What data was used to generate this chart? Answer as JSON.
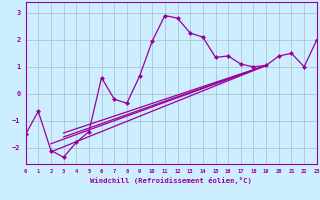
{
  "xlabel": "Windchill (Refroidissement éolien,°C)",
  "bg_color": "#cceeff",
  "line_color": "#990099",
  "grid_color": "#aabbcc",
  "x_range": [
    0,
    23
  ],
  "y_range": [
    -2.6,
    3.4
  ],
  "x_ticks": [
    0,
    1,
    2,
    3,
    4,
    5,
    6,
    7,
    8,
    9,
    10,
    11,
    12,
    13,
    14,
    15,
    16,
    17,
    18,
    19,
    20,
    21,
    22,
    23
  ],
  "y_ticks": [
    -2,
    -1,
    0,
    1,
    2,
    3
  ],
  "main_line": [
    [
      0,
      -1.5
    ],
    [
      1,
      -0.65
    ],
    [
      2,
      -2.1
    ],
    [
      3,
      -2.35
    ],
    [
      4,
      -1.8
    ],
    [
      5,
      -1.4
    ],
    [
      6,
      0.6
    ],
    [
      7,
      -0.2
    ],
    [
      8,
      -0.35
    ],
    [
      9,
      0.65
    ],
    [
      10,
      1.95
    ],
    [
      11,
      2.9
    ],
    [
      12,
      2.8
    ],
    [
      13,
      2.25
    ],
    [
      14,
      2.1
    ],
    [
      15,
      1.35
    ],
    [
      16,
      1.4
    ],
    [
      17,
      1.1
    ],
    [
      18,
      1.0
    ],
    [
      19,
      1.05
    ],
    [
      20,
      1.4
    ],
    [
      21,
      1.5
    ],
    [
      22,
      1.0
    ],
    [
      23,
      2.0
    ]
  ],
  "straight_lines": [
    [
      [
        2,
        -2.15
      ],
      [
        19,
        1.05
      ]
    ],
    [
      [
        2,
        -1.85
      ],
      [
        19,
        1.05
      ]
    ],
    [
      [
        3,
        -1.6
      ],
      [
        19,
        1.05
      ]
    ],
    [
      [
        3,
        -1.45
      ],
      [
        19,
        1.05
      ]
    ]
  ]
}
